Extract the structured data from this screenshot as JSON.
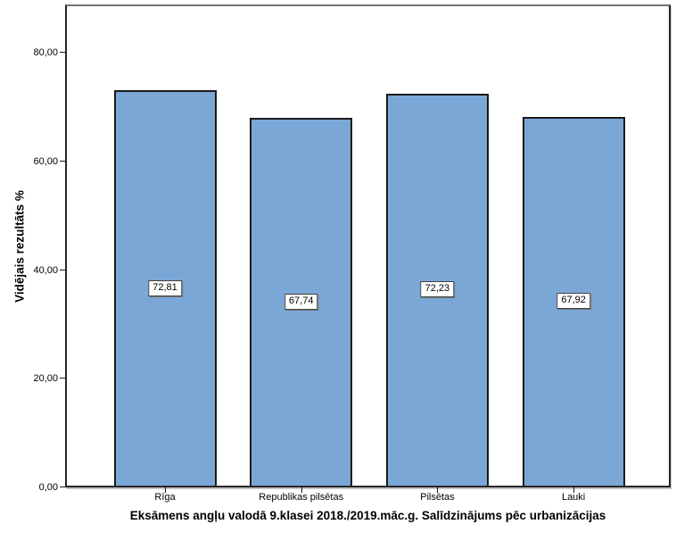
{
  "chart_data": {
    "type": "bar",
    "categories": [
      "Rīga",
      "Republikas pilsētas",
      "Pilsētas",
      "Lauki"
    ],
    "values": [
      72.81,
      67.74,
      72.23,
      67.92
    ],
    "value_labels": [
      "72,81",
      "67,74",
      "72,23",
      "67,92"
    ],
    "title": "",
    "xlabel": "Eksāmens angļu valodā 9.klasei 2018./2019.māc.g. Salīdzinājums pēc urbanizācijas",
    "ylabel": "Vidējais rezultāts %",
    "ylim": [
      0,
      88.6
    ],
    "yticks": [
      0,
      20,
      40,
      60,
      80
    ],
    "ytick_labels": [
      "0,00",
      "20,00",
      "40,00",
      "60,00",
      "80,00"
    ],
    "grid": false,
    "legend": "none",
    "bar_color": "#7ba7d6",
    "bar_border_color": "#1a1a1a",
    "frame_color": "#262626",
    "text_color": "#000000",
    "background_color": "#ffffff"
  }
}
